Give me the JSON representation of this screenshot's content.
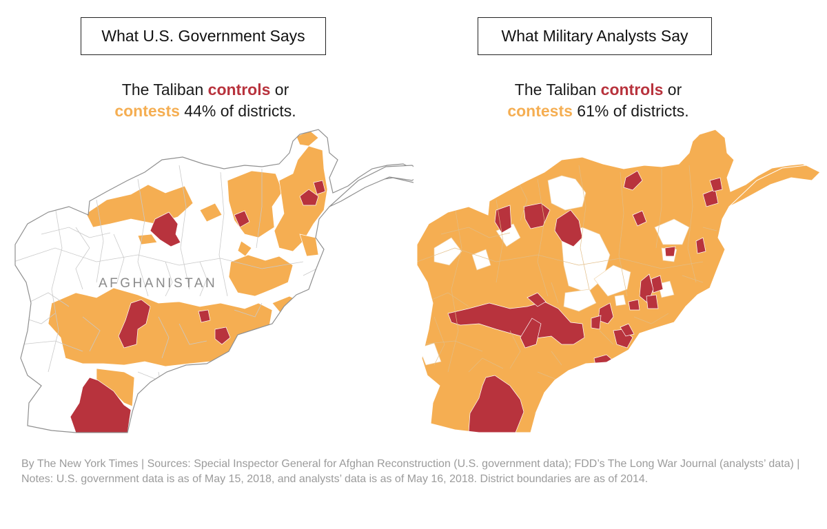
{
  "panels": {
    "left": {
      "title": "What U.S. Government Says",
      "subhead": {
        "part1": "The Taliban ",
        "controls": "controls",
        "part2": " or",
        "contests": "contests",
        "part3": " 44% of districts."
      },
      "contested_share_pct": 44,
      "country_label": "AFGHANISTAN"
    },
    "right": {
      "title": "What Military Analysts Say",
      "subhead": {
        "part1": "The Taliban ",
        "controls": "controls",
        "part2": " or",
        "contests": "contests",
        "part3": " 61% of districts."
      },
      "contested_share_pct": 61
    }
  },
  "legend_colors": {
    "controls": "#b8333d",
    "contests": "#f5ae52",
    "government": "#ffffff",
    "district_border": "#c9c9c9"
  },
  "footer": {
    "text": "By The New York Times | Sources: Special Inspector General for Afghan Reconstruction (U.S. government data); FDD’s The Long War Journal (analysts’ data) | Notes: U.S. government data is as of May 15, 2018, and analysts’ data is as of May 16, 2018. District boundaries are as of 2014."
  }
}
